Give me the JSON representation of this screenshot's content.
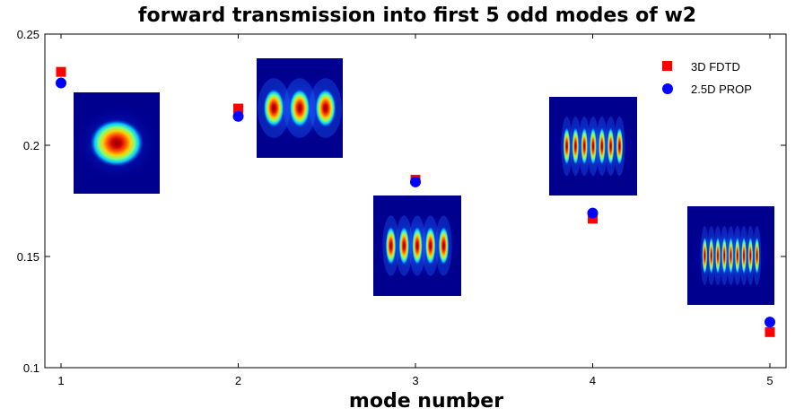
{
  "chart_data": {
    "type": "scatter",
    "title": "forward transmission into first 5 odd modes of w2",
    "xlabel": "mode number",
    "ylabel": "",
    "xlim": [
      1,
      5
    ],
    "ylim": [
      0.1,
      0.25
    ],
    "xticks": [
      "1",
      "2",
      "3",
      "4",
      "5"
    ],
    "yticks": [
      "0.1",
      "0.15",
      "0.2",
      "0.25"
    ],
    "grid": false,
    "legend_position": "top-right",
    "series": [
      {
        "name": "3D FDTD",
        "marker": "square",
        "color": "#ff0000",
        "x": [
          1,
          2,
          3,
          4,
          5
        ],
        "y": [
          0.233,
          0.2165,
          0.1845,
          0.167,
          0.116
        ]
      },
      {
        "name": "2.5D PROP",
        "marker": "circle",
        "color": "#0000ff",
        "x": [
          1,
          2,
          3,
          4,
          5
        ],
        "y": [
          0.228,
          0.213,
          0.1835,
          0.1695,
          0.1205
        ]
      }
    ],
    "insets": [
      {
        "mode": 1,
        "name": "mode-1-profile-image",
        "lobes": 1,
        "colormap": "jet"
      },
      {
        "mode": 2,
        "name": "mode-2-profile-image",
        "lobes": 3,
        "colormap": "jet"
      },
      {
        "mode": 3,
        "name": "mode-3-profile-image",
        "lobes": 5,
        "colormap": "jet"
      },
      {
        "mode": 4,
        "name": "mode-4-profile-image",
        "lobes": 7,
        "colormap": "jet"
      },
      {
        "mode": 5,
        "name": "mode-5-profile-image",
        "lobes": 9,
        "colormap": "jet"
      }
    ]
  }
}
